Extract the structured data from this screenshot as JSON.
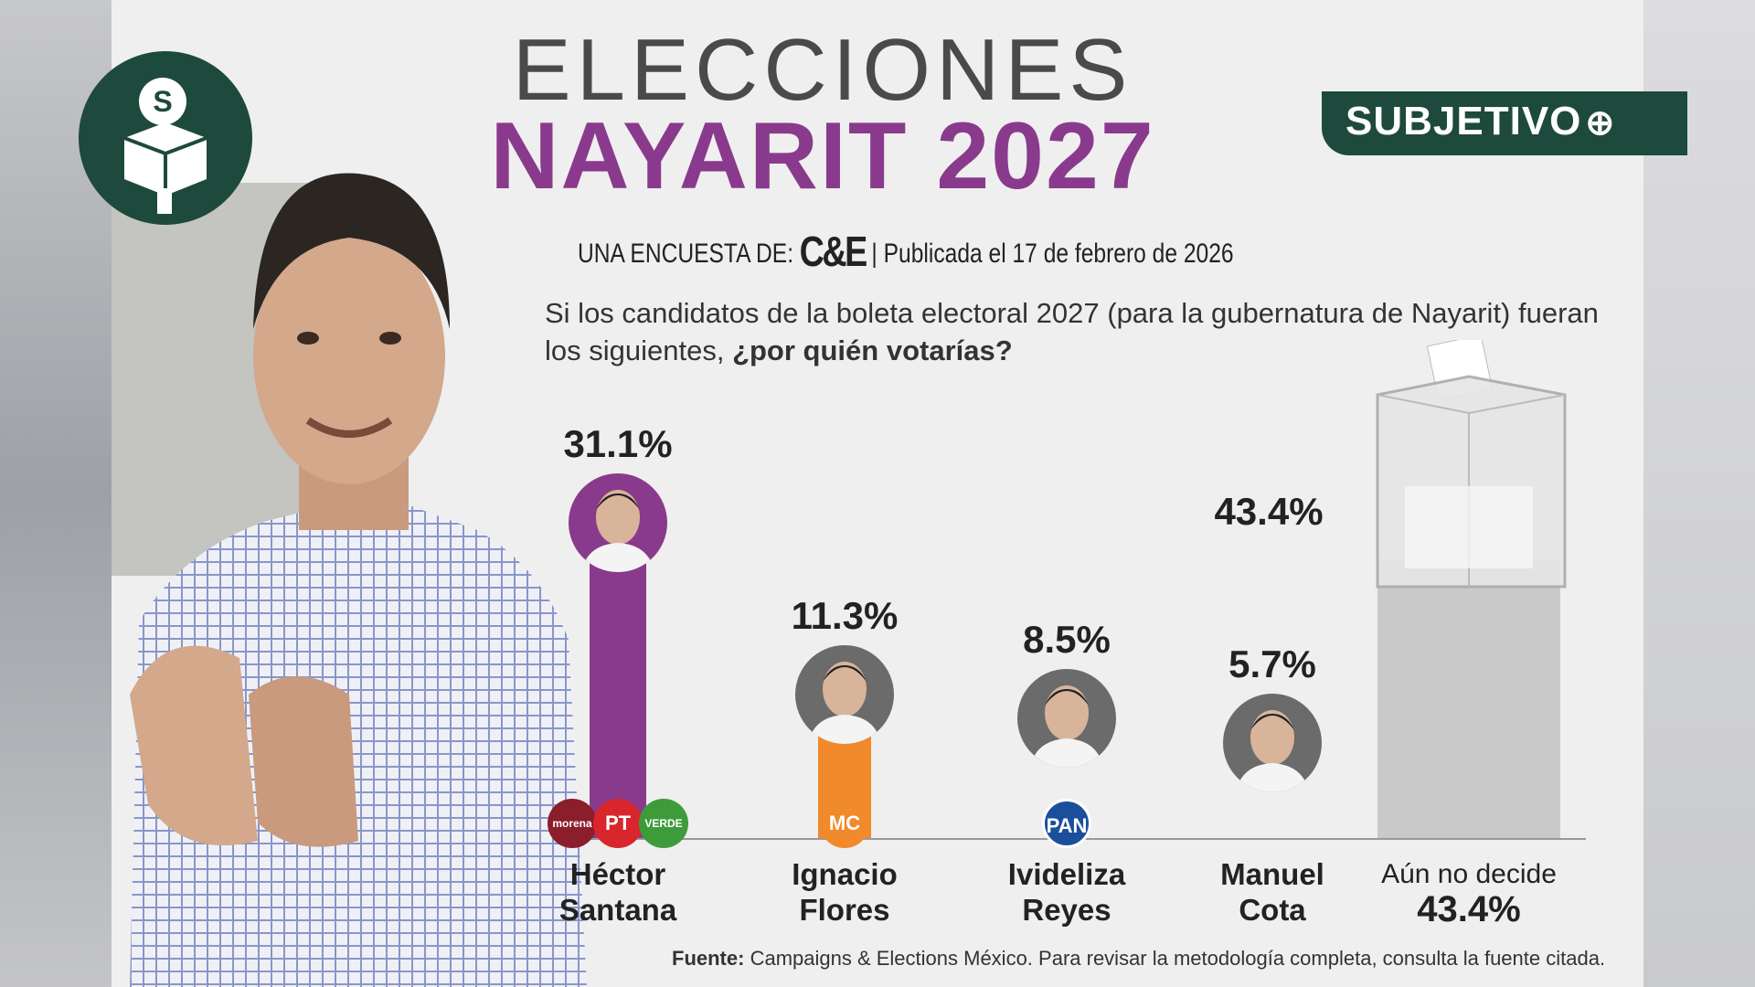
{
  "header": {
    "title_line1": "ELECCIONES",
    "title_line2": "NAYARIT 2027",
    "survey_prefix": "UNA ENCUESTA DE:",
    "pollster_logo": "C&E",
    "published": "| Publicada el 17 de febrero de 2026",
    "question_normal": "Si los candidatos de la boleta electoral 2027 (para la gubernatura de Nayarit) fueran los siguientes, ",
    "question_bold": "¿por quién votarías?"
  },
  "brand": {
    "badge": "SUBJETIVO",
    "logo_letter": "S",
    "color": "#1d4a3c"
  },
  "chart_data": {
    "type": "bar",
    "categories": [
      "Héctor Santana",
      "Ignacio Flores",
      "Ivideliza Reyes",
      "Manuel Cota",
      "Aún no decide"
    ],
    "values": [
      31.1,
      11.3,
      8.5,
      5.7,
      43.4
    ],
    "labels": [
      "31.1%",
      "11.3%",
      "8.5%",
      "5.7%",
      "43.4%"
    ],
    "name_lines": [
      [
        "Héctor",
        "Santana"
      ],
      [
        "Ignacio",
        "Flores"
      ],
      [
        "Ivideliza",
        "Reyes"
      ],
      [
        "Manuel",
        "Cota"
      ],
      [
        "Aún no decide",
        "43.4%"
      ]
    ],
    "parties": [
      [
        "morena",
        "PT",
        "VERDE"
      ],
      [
        "MC"
      ],
      [
        "PAN"
      ],
      [],
      []
    ],
    "colors": [
      "#8a3a8c",
      "#f08a2a",
      "#8a3a8c",
      "#555555",
      "#c8c8c8"
    ],
    "unit": "%"
  },
  "party_colors": {
    "morena": "#8c1d2b",
    "PT": "#d8262c",
    "VERDE": "#3e9b3a",
    "MC": "#f08a2a",
    "PAN": "#1b4f9c"
  },
  "footer": {
    "label": "Fuente:",
    "text": " Campaigns & Elections México. Para revisar la metodología completa, consulta la fuente citada."
  }
}
